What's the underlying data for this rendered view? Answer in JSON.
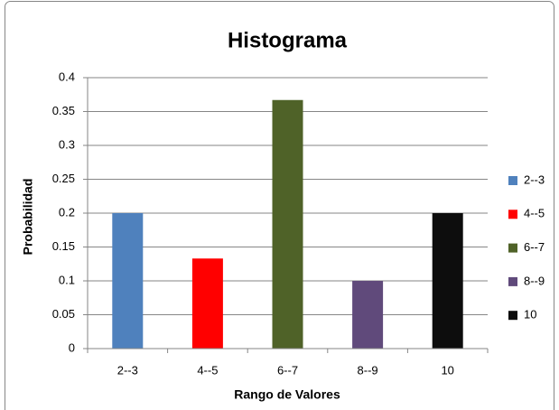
{
  "chart_data": {
    "type": "bar",
    "title": "Histograma",
    "x_label": "Rango de Valores",
    "y_label": "Probabilidad",
    "categories": [
      "2--3",
      "4--5",
      "6--7",
      "8--9",
      "10"
    ],
    "values": [
      0.2,
      0.133,
      0.367,
      0.1,
      0.2
    ],
    "colors": [
      "#4f81bd",
      "#ff0000",
      "#4f6228",
      "#604a7b",
      "#0d0d0d"
    ],
    "ylim": [
      0,
      0.4
    ],
    "yticks": [
      0,
      0.05,
      0.1,
      0.15,
      0.2,
      0.25,
      0.3,
      0.35,
      0.4
    ],
    "grid": true,
    "legend": "right"
  }
}
